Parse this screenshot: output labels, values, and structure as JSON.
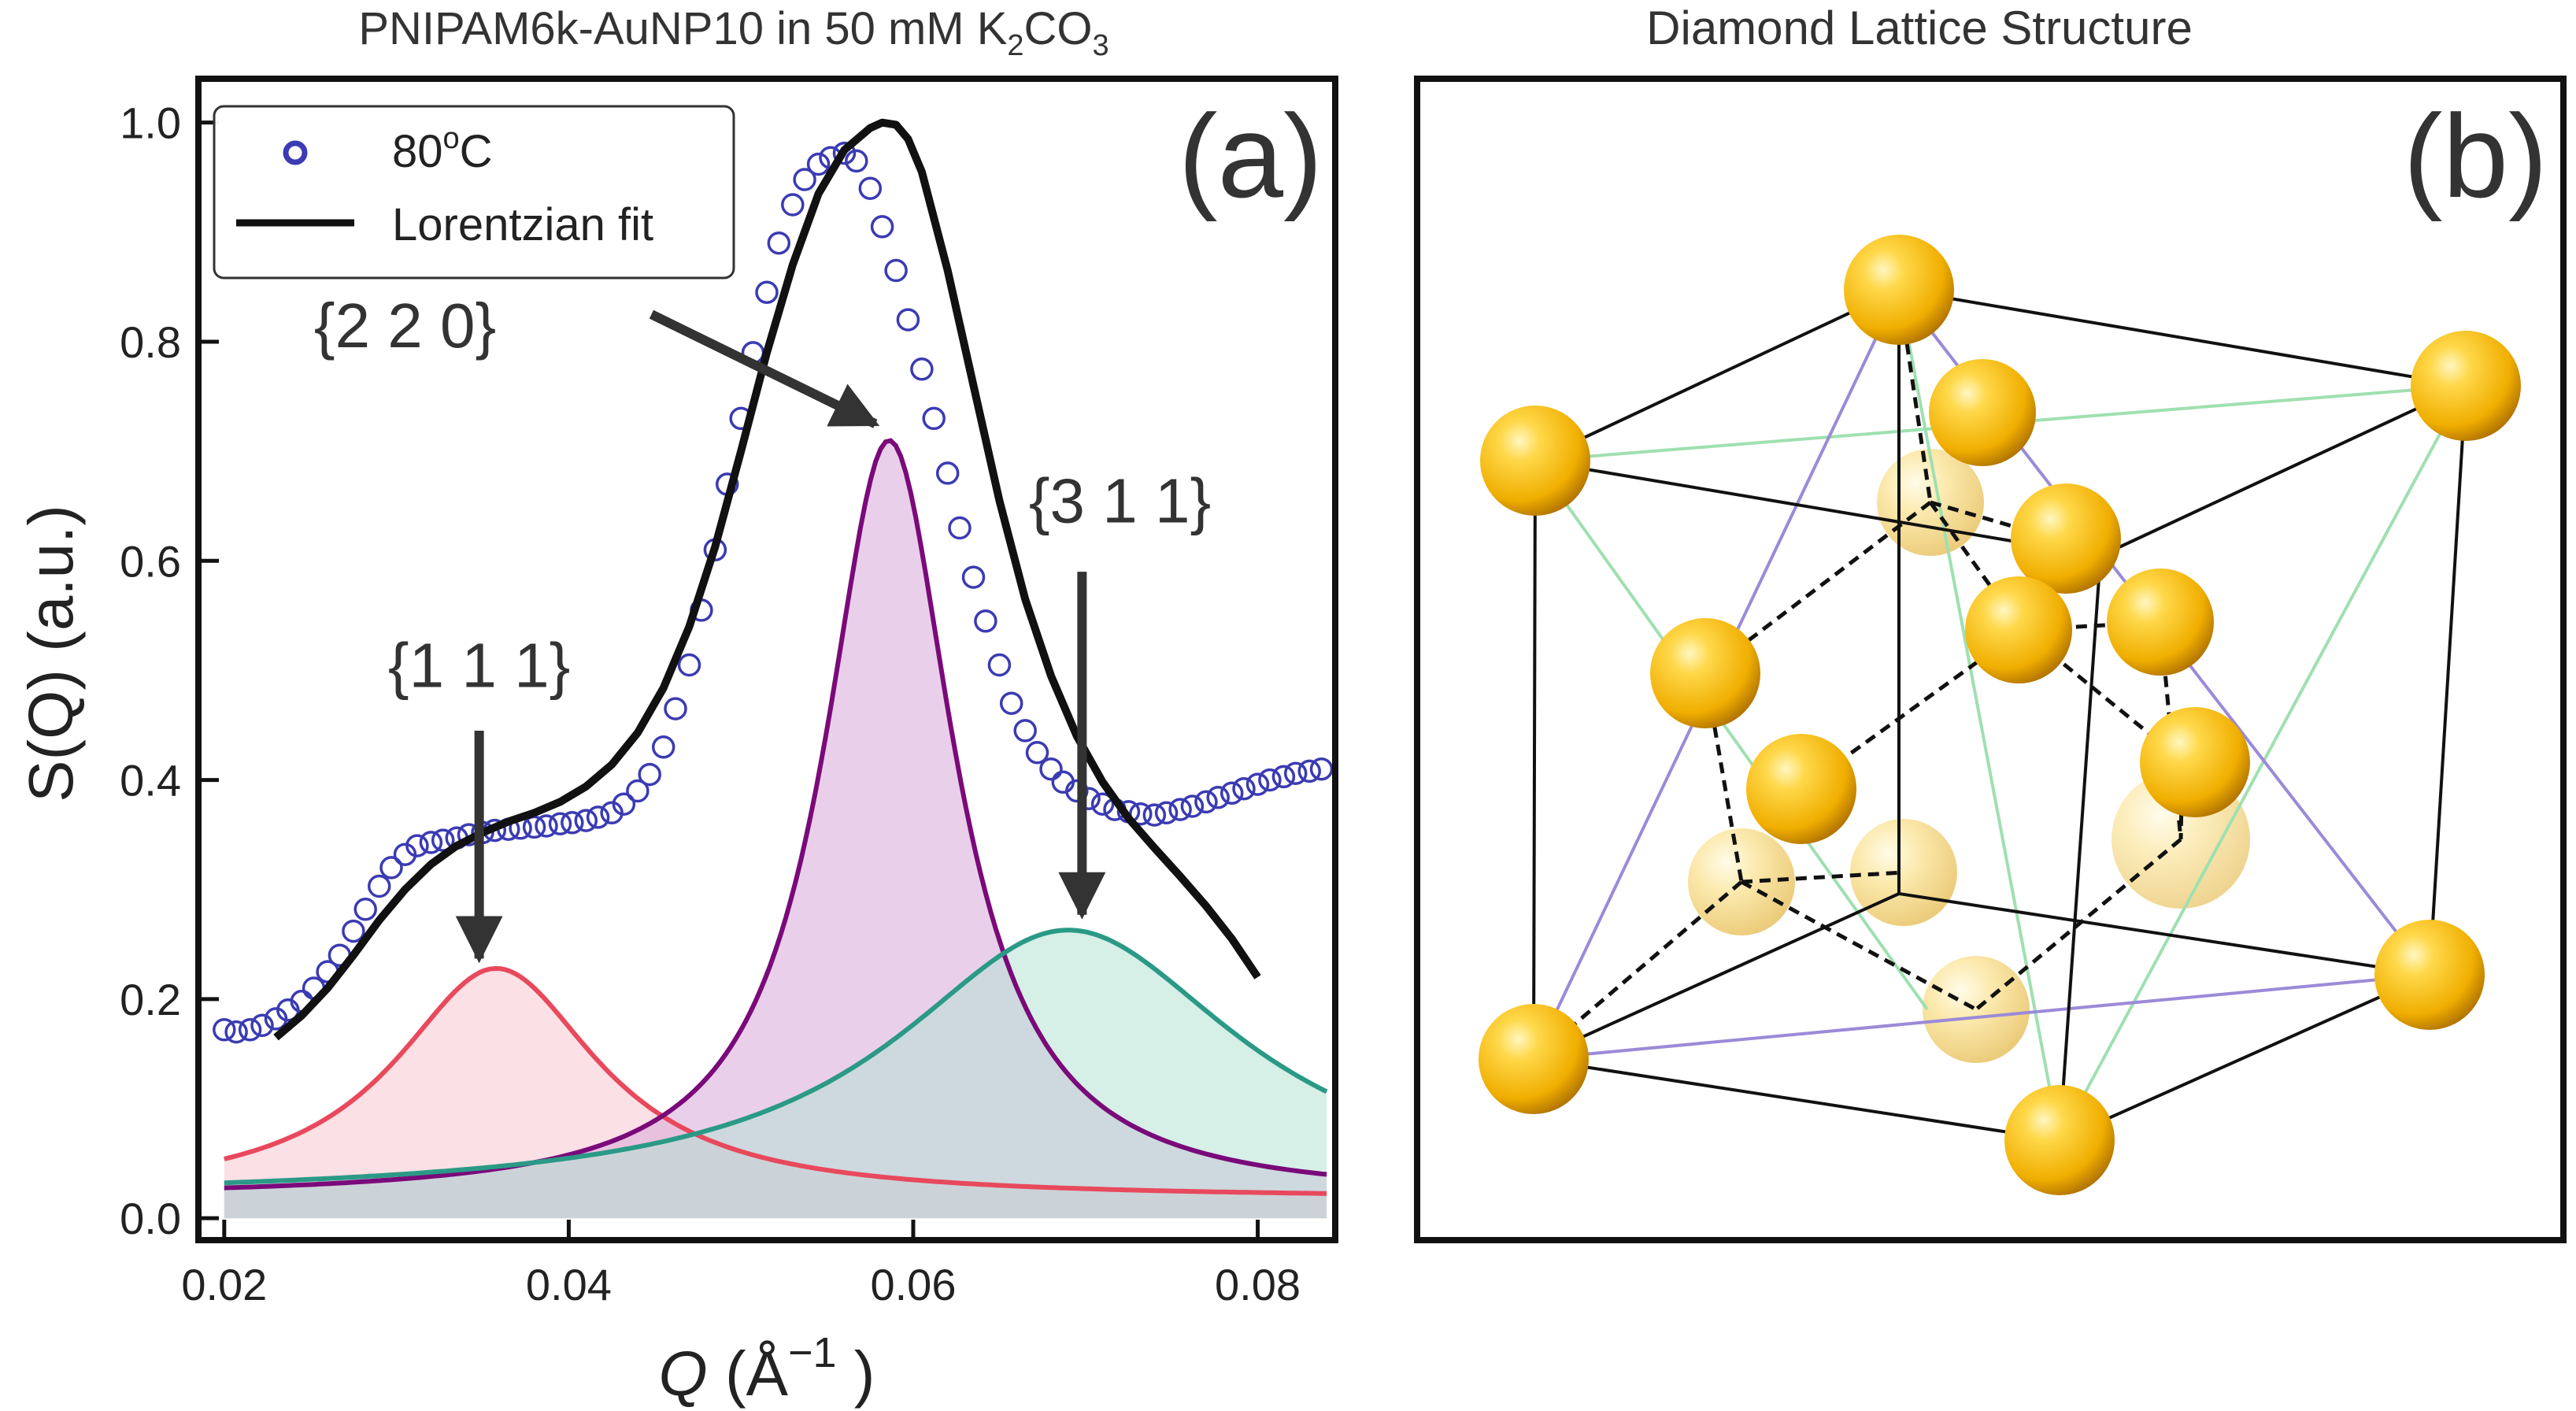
{
  "chart_data": [
    {
      "panel": "(a)",
      "type": "line",
      "title": {
        "main": "PNIPAM6k-AuNP10 in 50 mM K",
        "sub1": "2",
        "mid": "CO",
        "sub2": "3"
      },
      "xlabel": {
        "var": "Q",
        "open": " (Å",
        "exp": "−1",
        "close": " )"
      },
      "ylabel": "S(Q) (a.u.)",
      "xlim": [
        0.0185,
        0.0845
      ],
      "ylim": [
        -0.02,
        1.04
      ],
      "xticks": [
        0.02,
        0.04,
        0.06,
        0.08
      ],
      "xtick_labels": [
        "0.02",
        "0.04",
        "0.06",
        "0.08"
      ],
      "yticks": [
        0.0,
        0.2,
        0.4,
        0.6,
        0.8,
        1.0
      ],
      "ytick_labels": [
        "0.0",
        "0.2",
        "0.4",
        "0.6",
        "0.8",
        "1.0"
      ],
      "legend": {
        "placement": "top-left",
        "entries": [
          {
            "label_main": "80",
            "label_sup": "o",
            "label_tail": "C",
            "marker": "open-circle"
          },
          {
            "label": "Lorentzian fit",
            "marker": "line"
          }
        ]
      },
      "series": [
        {
          "name": "80°C",
          "kind": "scatter",
          "color": "#3b3bb3",
          "x": [
            0.02,
            0.0207,
            0.0215,
            0.0222,
            0.023,
            0.0237,
            0.0245,
            0.0252,
            0.026,
            0.0267,
            0.0275,
            0.0282,
            0.029,
            0.0297,
            0.0305,
            0.0312,
            0.032,
            0.0327,
            0.0335,
            0.0342,
            0.035,
            0.0357,
            0.0365,
            0.0372,
            0.038,
            0.0387,
            0.0395,
            0.0402,
            0.041,
            0.0417,
            0.0425,
            0.0432,
            0.044,
            0.0447,
            0.0455,
            0.0462,
            0.047,
            0.0477,
            0.0485,
            0.0492,
            0.05,
            0.0507,
            0.0515,
            0.0522,
            0.053,
            0.0537,
            0.0545,
            0.0552,
            0.056,
            0.0567,
            0.0575,
            0.0582,
            0.059,
            0.0597,
            0.0605,
            0.0612,
            0.062,
            0.0627,
            0.0635,
            0.0642,
            0.065,
            0.0657,
            0.0665,
            0.0672,
            0.068,
            0.0687,
            0.0695,
            0.0702,
            0.071,
            0.0717,
            0.0725,
            0.0732,
            0.074,
            0.0747,
            0.0755,
            0.0762,
            0.077,
            0.0777,
            0.0785,
            0.0792,
            0.08,
            0.0807,
            0.0815,
            0.0822,
            0.083,
            0.0837
          ],
          "y": [
            0.172,
            0.17,
            0.172,
            0.176,
            0.182,
            0.19,
            0.198,
            0.21,
            0.225,
            0.24,
            0.262,
            0.282,
            0.303,
            0.32,
            0.332,
            0.34,
            0.343,
            0.345,
            0.347,
            0.35,
            0.352,
            0.354,
            0.355,
            0.356,
            0.357,
            0.358,
            0.36,
            0.361,
            0.363,
            0.366,
            0.37,
            0.378,
            0.39,
            0.405,
            0.43,
            0.465,
            0.505,
            0.555,
            0.61,
            0.67,
            0.73,
            0.79,
            0.845,
            0.89,
            0.925,
            0.948,
            0.962,
            0.968,
            0.972,
            0.965,
            0.94,
            0.905,
            0.865,
            0.82,
            0.775,
            0.73,
            0.68,
            0.63,
            0.585,
            0.545,
            0.505,
            0.47,
            0.445,
            0.425,
            0.41,
            0.398,
            0.39,
            0.383,
            0.378,
            0.373,
            0.371,
            0.369,
            0.368,
            0.37,
            0.373,
            0.376,
            0.38,
            0.384,
            0.388,
            0.392,
            0.396,
            0.4,
            0.403,
            0.406,
            0.408,
            0.41
          ]
        },
        {
          "name": "Lorentzian fit",
          "kind": "line",
          "color": "#111111",
          "x": [
            0.023,
            0.0245,
            0.026,
            0.0275,
            0.029,
            0.0305,
            0.032,
            0.0335,
            0.035,
            0.0365,
            0.038,
            0.0395,
            0.041,
            0.0425,
            0.044,
            0.0455,
            0.047,
            0.0485,
            0.05,
            0.0515,
            0.053,
            0.0545,
            0.056,
            0.0575,
            0.0582,
            0.059,
            0.0597,
            0.0605,
            0.062,
            0.0635,
            0.065,
            0.0665,
            0.068,
            0.0695,
            0.071,
            0.0725,
            0.074,
            0.0755,
            0.077,
            0.0785,
            0.08
          ],
          "y": [
            0.165,
            0.185,
            0.21,
            0.24,
            0.272,
            0.3,
            0.323,
            0.34,
            0.352,
            0.362,
            0.37,
            0.38,
            0.394,
            0.414,
            0.443,
            0.484,
            0.54,
            0.613,
            0.7,
            0.79,
            0.87,
            0.935,
            0.975,
            0.995,
            1.0,
            0.998,
            0.985,
            0.955,
            0.865,
            0.76,
            0.655,
            0.565,
            0.495,
            0.44,
            0.398,
            0.365,
            0.338,
            0.312,
            0.285,
            0.255,
            0.22
          ]
        },
        {
          "name": "{1 1 1}",
          "kind": "area",
          "color": "#e8495c",
          "fill": "#f7c7cf",
          "peak": {
            "center": 0.0358,
            "amplitude": 0.21,
            "hwhm": 0.0072,
            "baseline": 0.018
          }
        },
        {
          "name": "{2 2 0}",
          "kind": "area",
          "color": "#7a0a7a",
          "fill": "#d9a7d9",
          "peak": {
            "center": 0.0586,
            "amplitude": 0.692,
            "hwhm": 0.0046,
            "baseline": 0.018
          }
        },
        {
          "name": "{3 1 1}",
          "kind": "area",
          "color": "#2a9a86",
          "fill": "#b5e2d4",
          "peak": {
            "center": 0.069,
            "amplitude": 0.245,
            "hwhm": 0.0122,
            "baseline": 0.018
          }
        }
      ],
      "annotations": [
        {
          "label": "{1 1 1}",
          "text_at": [
            0.0348,
            0.485
          ],
          "arrow_from": [
            0.0348,
            0.445
          ],
          "arrow_to": [
            0.0348,
            0.237
          ]
        },
        {
          "label": "{2 2 0}",
          "text_at": [
            0.0305,
            0.795
          ],
          "arrow_from": [
            0.0448,
            0.825
          ],
          "arrow_to": [
            0.0578,
            0.725
          ]
        },
        {
          "label": "{3 1 1}",
          "text_at": [
            0.072,
            0.635
          ],
          "arrow_from": [
            0.0698,
            0.59
          ],
          "arrow_to": [
            0.0698,
            0.277
          ]
        }
      ]
    },
    {
      "panel": "(b)",
      "type": "diagram",
      "title": "Diamond Lattice Structure",
      "colors": {
        "atom": "#f2b100",
        "atom_light": "#fff3b0",
        "cube_edge": "#111111",
        "bond_dash": "#111111",
        "face_diag_purple": "#9b8ad8",
        "face_diag_green": "#9fe0b0"
      }
    }
  ]
}
